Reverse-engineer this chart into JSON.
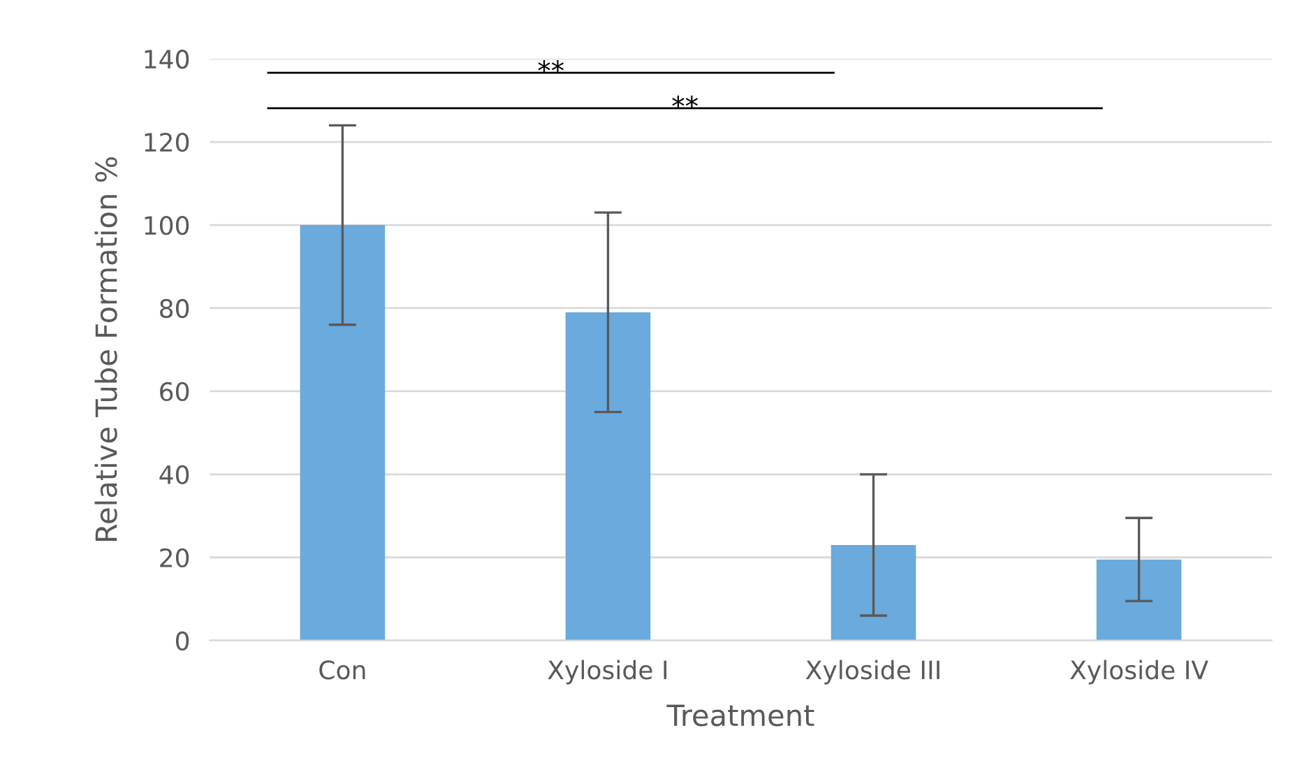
{
  "chart_data": {
    "type": "bar",
    "xlabel": "Treatment",
    "ylabel": "Relative Tube Formation %",
    "categories": [
      "Con",
      "Xyloside I",
      "Xyloside III",
      "Xyloside IV"
    ],
    "values": [
      100,
      79,
      23,
      19.5
    ],
    "errors": [
      24,
      24,
      17,
      10
    ],
    "color": "#6aaadc",
    "ylim": [
      0,
      140
    ],
    "yticks": [
      0,
      20,
      40,
      60,
      80,
      100,
      120,
      140
    ],
    "grid": "y",
    "annotations": [
      "**",
      "**"
    ]
  }
}
